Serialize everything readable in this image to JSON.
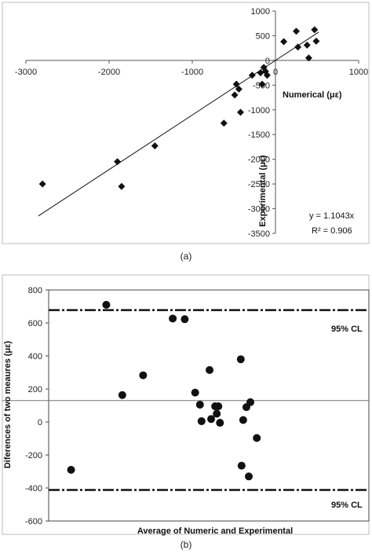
{
  "chart_data": [
    {
      "type": "scatter",
      "caption": "(a)",
      "xlabel": "Numerical (με)",
      "ylabel": "Experimental (με)",
      "xlim": [
        -3000,
        1000
      ],
      "ylim": [
        -3500,
        1000
      ],
      "xticks": [
        -3000,
        -2000,
        -1000,
        0,
        1000
      ],
      "yticks": [
        1000,
        500,
        0,
        -500,
        -1000,
        -1500,
        -2000,
        -2500,
        -3000,
        -3500
      ],
      "grid": false,
      "marker": "diamond",
      "points": [
        {
          "x": -2800,
          "y": -2500
        },
        {
          "x": -1900,
          "y": -2050
        },
        {
          "x": -1850,
          "y": -2550
        },
        {
          "x": -1450,
          "y": -1730
        },
        {
          "x": -620,
          "y": -1270
        },
        {
          "x": -420,
          "y": -1050
        },
        {
          "x": -490,
          "y": -700
        },
        {
          "x": -470,
          "y": -480
        },
        {
          "x": -440,
          "y": -580
        },
        {
          "x": -280,
          "y": -300
        },
        {
          "x": -180,
          "y": -250
        },
        {
          "x": -140,
          "y": -140
        },
        {
          "x": -120,
          "y": -220
        },
        {
          "x": -160,
          "y": -480
        },
        {
          "x": -100,
          "y": -300
        },
        {
          "x": 100,
          "y": 380
        },
        {
          "x": 250,
          "y": 590
        },
        {
          "x": 270,
          "y": 270
        },
        {
          "x": 380,
          "y": 310
        },
        {
          "x": 400,
          "y": 50
        },
        {
          "x": 470,
          "y": 620
        },
        {
          "x": 490,
          "y": 390
        }
      ],
      "trendline": {
        "slope": 1.1043,
        "x_range": [
          -2850,
          520
        ]
      },
      "equation_text": "y = 1.1043x",
      "r2_text": "R² = 0.906"
    },
    {
      "type": "scatter",
      "caption": "(b)",
      "xlabel": "Average of Numeric and Experimental",
      "ylabel": "Diferences of two meaures (με)",
      "xlim": [
        -3000,
        1000
      ],
      "ylim": [
        -600,
        800
      ],
      "yticks": [
        800,
        600,
        400,
        200,
        0,
        -200,
        -400,
        -600
      ],
      "grid": false,
      "marker": "circle",
      "points": [
        {
          "x": -2720,
          "y": -290
        },
        {
          "x": -2280,
          "y": 710
        },
        {
          "x": -2080,
          "y": 163
        },
        {
          "x": -1820,
          "y": 283
        },
        {
          "x": -1450,
          "y": 627
        },
        {
          "x": -1300,
          "y": 623
        },
        {
          "x": -1170,
          "y": 178
        },
        {
          "x": -1110,
          "y": 105
        },
        {
          "x": -1090,
          "y": 5
        },
        {
          "x": -990,
          "y": 315
        },
        {
          "x": -970,
          "y": 18
        },
        {
          "x": -920,
          "y": 95
        },
        {
          "x": -900,
          "y": 50
        },
        {
          "x": -880,
          "y": 95
        },
        {
          "x": -860,
          "y": -5
        },
        {
          "x": -600,
          "y": 380
        },
        {
          "x": -590,
          "y": -265
        },
        {
          "x": -570,
          "y": 12
        },
        {
          "x": -530,
          "y": 90
        },
        {
          "x": -500,
          "y": -330
        },
        {
          "x": -480,
          "y": 120
        },
        {
          "x": -400,
          "y": -97
        }
      ],
      "mean_line": 130,
      "upper_limit": 678,
      "lower_limit": -412,
      "upper_limit_label": "95% CL",
      "lower_limit_label": "95% CL"
    }
  ]
}
